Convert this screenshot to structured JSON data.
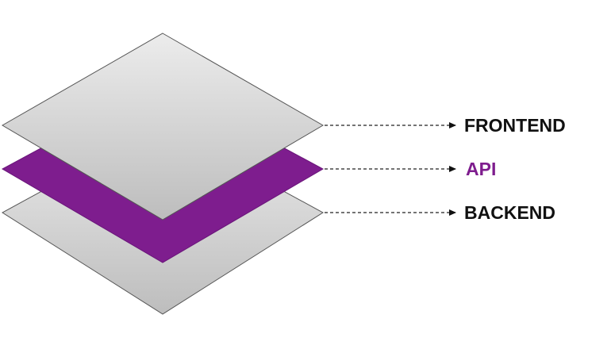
{
  "diagram": {
    "layers": [
      {
        "id": "frontend",
        "label": "FRONTEND",
        "fill": "#c6c6c6",
        "label_color": "#111111"
      },
      {
        "id": "api",
        "label": "API",
        "fill": "#7e1d8e",
        "label_color": "#7e1d8e"
      },
      {
        "id": "backend",
        "label": "BACKEND",
        "fill": "#c6c6c6",
        "label_color": "#111111"
      }
    ],
    "arrow_color": "#222222",
    "background": "#ffffff"
  }
}
